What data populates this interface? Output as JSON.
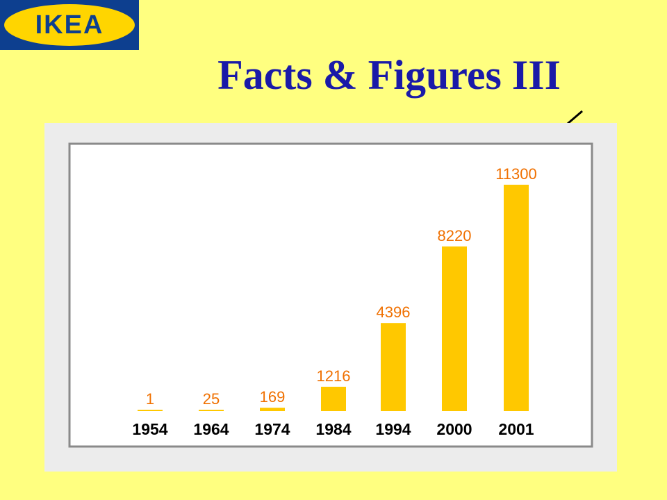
{
  "logo": {
    "text": "IKEA"
  },
  "title": "Facts & Figures III",
  "colors": {
    "background": "#ffff80",
    "bar": "#ffc800",
    "label": "#f07000",
    "title": "#1a1aa8"
  },
  "chart_data": {
    "type": "bar",
    "categories": [
      "1954",
      "1964",
      "1974",
      "1984",
      "1994",
      "2000",
      "2001"
    ],
    "values": [
      1,
      25,
      169,
      1216,
      4396,
      8220,
      11300
    ],
    "data_labels": [
      "1",
      "25",
      "169",
      "1216",
      "4396",
      "8220",
      "11300"
    ],
    "title": "",
    "xlabel": "",
    "ylabel": "",
    "ylim": [
      0,
      11300
    ],
    "grid": false,
    "legend": "none",
    "annotation": "arrow pointing to 2001"
  }
}
